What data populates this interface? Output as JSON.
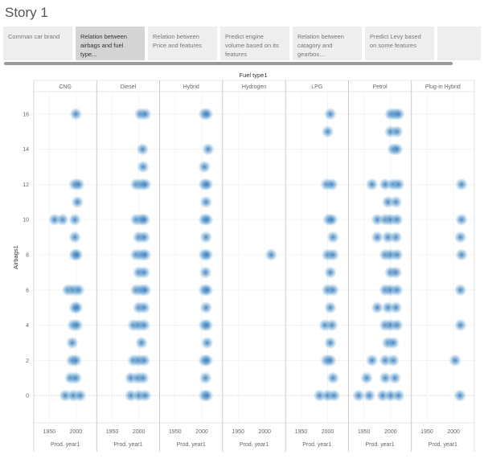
{
  "story": {
    "title": "Story 1"
  },
  "tabs": [
    {
      "label": "Comman car brand",
      "active": false
    },
    {
      "label": "Relation between airbags and fuel type...",
      "active": true
    },
    {
      "label": "Relation between Price and features",
      "active": false
    },
    {
      "label": "Predict engine volume based on its features",
      "active": false
    },
    {
      "label": "Relation between catagory and gearbox...",
      "active": false
    },
    {
      "label": "Predict Levy based on some features",
      "active": false
    }
  ],
  "colors": {
    "mark": "#3a7dbd",
    "mark_light": "#9ecae1",
    "grid": "#eeeeee",
    "divider": "#bdbdbd"
  },
  "chart_data": {
    "type": "scatter",
    "column_field_title": "Fuel type1",
    "row_axis_label": "Airbags1",
    "x_axis_label": "Prod. year1",
    "panels": [
      "CNG",
      "Diesel",
      "Hybrid",
      "Hydrogen",
      "LPG",
      "Petrol",
      "Plug-in Hybrid"
    ],
    "xlim": [
      1930,
      2030
    ],
    "ylim": [
      -1,
      17
    ],
    "x_ticks": [
      1950,
      2000
    ],
    "y_ticks": [
      0,
      2,
      4,
      6,
      8,
      10,
      12,
      14,
      16
    ],
    "series": [
      {
        "name": "CNG",
        "points": [
          {
            "y": 16,
            "x": [
              2000
            ]
          },
          {
            "y": 12,
            "x": [
              1998,
              2005
            ]
          },
          {
            "y": 11,
            "x": [
              2003
            ]
          },
          {
            "y": 10,
            "x": [
              1960,
              1975,
              1998
            ]
          },
          {
            "y": 9,
            "x": [
              1998
            ]
          },
          {
            "y": 8,
            "x": [
              1998,
              2002
            ]
          },
          {
            "y": 6,
            "x": [
              1985,
              1995,
              2005
            ]
          },
          {
            "y": 5,
            "x": [
              1998,
              2002
            ]
          },
          {
            "y": 4,
            "x": [
              1995,
              2002
            ]
          },
          {
            "y": 3,
            "x": [
              1993
            ]
          },
          {
            "y": 2,
            "x": [
              1993,
              2000
            ]
          },
          {
            "y": 1,
            "x": [
              1990,
              2000
            ]
          },
          {
            "y": 0,
            "x": [
              1980,
              1995,
              2008
            ]
          }
        ]
      },
      {
        "name": "Diesel",
        "points": [
          {
            "y": 16,
            "x": [
              2003,
              2012
            ]
          },
          {
            "y": 14,
            "x": [
              2007
            ]
          },
          {
            "y": 13,
            "x": [
              2008
            ]
          },
          {
            "y": 12,
            "x": [
              1995,
              2005,
              2012
            ]
          },
          {
            "y": 10,
            "x": [
              1995,
              2005,
              2010
            ]
          },
          {
            "y": 9,
            "x": [
              2000,
              2010
            ]
          },
          {
            "y": 8,
            "x": [
              1995,
              2005,
              2012
            ]
          },
          {
            "y": 7,
            "x": [
              2000,
              2010
            ]
          },
          {
            "y": 6,
            "x": [
              1995,
              2005,
              2012
            ]
          },
          {
            "y": 5,
            "x": [
              2000,
              2010
            ]
          },
          {
            "y": 4,
            "x": [
              1990,
              2000,
              2010
            ]
          },
          {
            "y": 3,
            "x": [
              2005
            ]
          },
          {
            "y": 2,
            "x": [
              1990,
              2000,
              2010
            ]
          },
          {
            "y": 1,
            "x": [
              1985,
              1998,
              2008
            ]
          },
          {
            "y": 0,
            "x": [
              1985,
              2000,
              2012
            ]
          }
        ]
      },
      {
        "name": "Hybrid",
        "points": [
          {
            "y": 16,
            "x": [
              2005,
              2010
            ]
          },
          {
            "y": 14,
            "x": [
              2012
            ]
          },
          {
            "y": 13,
            "x": [
              2005
            ]
          },
          {
            "y": 12,
            "x": [
              2005,
              2010
            ]
          },
          {
            "y": 11,
            "x": [
              2008
            ]
          },
          {
            "y": 10,
            "x": [
              2005,
              2010
            ]
          },
          {
            "y": 9,
            "x": [
              2008
            ]
          },
          {
            "y": 8,
            "x": [
              2005,
              2010
            ]
          },
          {
            "y": 7,
            "x": [
              2007
            ]
          },
          {
            "y": 6,
            "x": [
              2005,
              2010
            ]
          },
          {
            "y": 5,
            "x": [
              2008
            ]
          },
          {
            "y": 4,
            "x": [
              2005,
              2010
            ]
          },
          {
            "y": 3,
            "x": [
              2010
            ]
          },
          {
            "y": 2,
            "x": [
              2005,
              2010
            ]
          },
          {
            "y": 1,
            "x": [
              2007
            ]
          },
          {
            "y": 0,
            "x": [
              2005,
              2010
            ]
          }
        ]
      },
      {
        "name": "Hydrogen",
        "points": [
          {
            "y": 8,
            "x": [
              2012
            ]
          }
        ]
      },
      {
        "name": "LPG",
        "points": [
          {
            "y": 16,
            "x": [
              2005
            ]
          },
          {
            "y": 15,
            "x": [
              2000
            ]
          },
          {
            "y": 12,
            "x": [
              1998,
              2008
            ]
          },
          {
            "y": 10,
            "x": [
              2002,
              2008
            ]
          },
          {
            "y": 9,
            "x": [
              2010
            ]
          },
          {
            "y": 8,
            "x": [
              2000,
              2010
            ]
          },
          {
            "y": 7,
            "x": [
              2005
            ]
          },
          {
            "y": 6,
            "x": [
              2000,
              2010
            ]
          },
          {
            "y": 5,
            "x": [
              2005
            ]
          },
          {
            "y": 4,
            "x": [
              1995,
              2008
            ]
          },
          {
            "y": 3,
            "x": [
              2005
            ]
          },
          {
            "y": 2,
            "x": [
              1998,
              2005
            ]
          },
          {
            "y": 1,
            "x": [
              2010
            ]
          },
          {
            "y": 0,
            "x": [
              1985,
              2000,
              2012
            ]
          }
        ]
      },
      {
        "name": "Petrol",
        "points": [
          {
            "y": 16,
            "x": [
              2000,
              2008,
              2015
            ]
          },
          {
            "y": 15,
            "x": [
              2000,
              2012
            ]
          },
          {
            "y": 14,
            "x": [
              2005,
              2012
            ]
          },
          {
            "y": 12,
            "x": [
              1965,
              1990,
              2005,
              2015
            ]
          },
          {
            "y": 11,
            "x": [
              1995,
              2010
            ]
          },
          {
            "y": 10,
            "x": [
              1975,
              1990,
              2000,
              2012
            ]
          },
          {
            "y": 9,
            "x": [
              1975,
              1995,
              2010
            ]
          },
          {
            "y": 8,
            "x": [
              1990,
              2000,
              2012
            ]
          },
          {
            "y": 7,
            "x": [
              2000,
              2010
            ]
          },
          {
            "y": 6,
            "x": [
              1990,
              2000,
              2012
            ]
          },
          {
            "y": 5,
            "x": [
              1975,
              1995,
              2010
            ]
          },
          {
            "y": 4,
            "x": [
              1990,
              2000,
              2012
            ]
          },
          {
            "y": 3,
            "x": [
              1995,
              2005
            ]
          },
          {
            "y": 2,
            "x": [
              1965,
              1990,
              2005
            ]
          },
          {
            "y": 1,
            "x": [
              1955,
              1990,
              2008
            ]
          },
          {
            "y": 0,
            "x": [
              1940,
              1960,
              1985,
              2000,
              2015
            ]
          }
        ]
      },
      {
        "name": "Plug-in Hybrid",
        "points": [
          {
            "y": 12,
            "x": [
              2015
            ]
          },
          {
            "y": 10,
            "x": [
              2015
            ]
          },
          {
            "y": 9,
            "x": [
              2013
            ]
          },
          {
            "y": 8,
            "x": [
              2015
            ]
          },
          {
            "y": 6,
            "x": [
              2013
            ]
          },
          {
            "y": 4,
            "x": [
              2013
            ]
          },
          {
            "y": 2,
            "x": [
              2003
            ]
          },
          {
            "y": 0,
            "x": [
              2012
            ]
          }
        ]
      }
    ]
  }
}
